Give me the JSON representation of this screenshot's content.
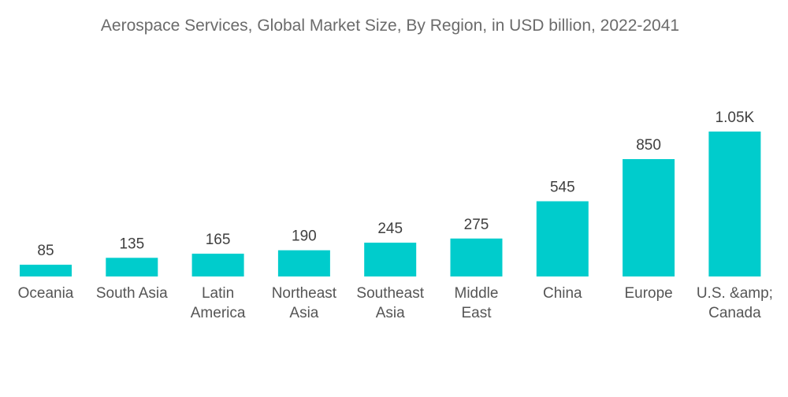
{
  "chart_data": {
    "type": "bar",
    "title": "Aerospace Services, Global Market Size, By Region, in USD billion, 2022-2041",
    "categories": [
      [
        "Oceania"
      ],
      [
        "South Asia"
      ],
      [
        "Latin",
        "America"
      ],
      [
        "Northeast",
        "Asia"
      ],
      [
        "Southeast",
        "Asia"
      ],
      [
        "Middle",
        "East"
      ],
      [
        "China"
      ],
      [
        "Europe"
      ],
      [
        "U.S. &amp;",
        "Canada"
      ]
    ],
    "values": [
      85,
      135,
      165,
      190,
      245,
      275,
      545,
      850,
      1050
    ],
    "value_labels": [
      "85",
      "135",
      "165",
      "190",
      "245",
      "275",
      "545",
      "850",
      "1.05K"
    ],
    "xlabel": "",
    "ylabel": "",
    "ylim": [
      0,
      1050
    ],
    "grid": false,
    "legend": "none",
    "colors": {
      "bar": "#00cccc"
    }
  }
}
